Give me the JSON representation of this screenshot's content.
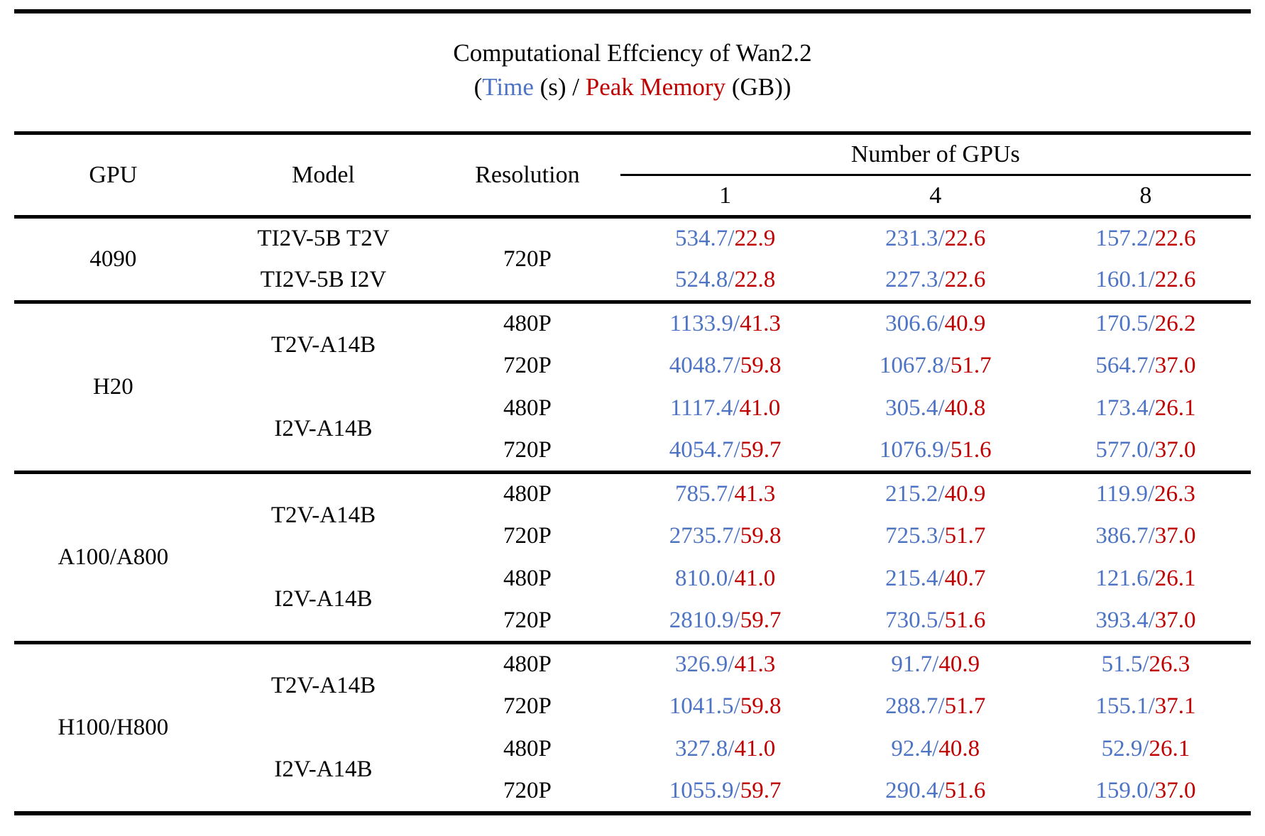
{
  "colors": {
    "time": "#4d74c4",
    "memory": "#c00000",
    "text": "#000000",
    "background": "#ffffff"
  },
  "title": {
    "line1": "Computational Effciency of Wan2.2",
    "line2": {
      "prefix": "(",
      "time_label": "Time",
      "mid": " (s) / ",
      "memory_label": "Peak Memory",
      "suffix": " (GB))"
    }
  },
  "header": {
    "gpu": "GPU",
    "model": "Model",
    "resolution": "Resolution",
    "gpus_group": "Number of GPUs",
    "gpu_counts": [
      "1",
      "4",
      "8"
    ]
  },
  "chart_data": {
    "type": "table",
    "value_format": "Time (s) / Peak Memory (GB)",
    "separator": "/",
    "gpu_count_columns": [
      "1",
      "4",
      "8"
    ],
    "sections": [
      {
        "gpu": "4090",
        "rows": [
          {
            "model": "TI2V-5B T2V",
            "model_rowspan": 1,
            "resolution": "720P",
            "resolution_rowspan": 2,
            "values": [
              [
                "534.7",
                "22.9"
              ],
              [
                "231.3",
                "22.6"
              ],
              [
                "157.2",
                "22.6"
              ]
            ]
          },
          {
            "model": "TI2V-5B I2V",
            "model_rowspan": 1,
            "values": [
              [
                "524.8",
                "22.8"
              ],
              [
                "227.3",
                "22.6"
              ],
              [
                "160.1",
                "22.6"
              ]
            ]
          }
        ]
      },
      {
        "gpu": "H20",
        "rows": [
          {
            "model": "T2V-A14B",
            "model_rowspan": 2,
            "resolution": "480P",
            "resolution_rowspan": 1,
            "values": [
              [
                "1133.9",
                "41.3"
              ],
              [
                "306.6",
                "40.9"
              ],
              [
                "170.5",
                "26.2"
              ]
            ]
          },
          {
            "resolution": "720P",
            "resolution_rowspan": 1,
            "values": [
              [
                "4048.7",
                "59.8"
              ],
              [
                "1067.8",
                "51.7"
              ],
              [
                "564.7",
                "37.0"
              ]
            ]
          },
          {
            "model": "I2V-A14B",
            "model_rowspan": 2,
            "resolution": "480P",
            "resolution_rowspan": 1,
            "values": [
              [
                "1117.4",
                "41.0"
              ],
              [
                "305.4",
                "40.8"
              ],
              [
                "173.4",
                "26.1"
              ]
            ]
          },
          {
            "resolution": "720P",
            "resolution_rowspan": 1,
            "values": [
              [
                "4054.7",
                "59.7"
              ],
              [
                "1076.9",
                "51.6"
              ],
              [
                "577.0",
                "37.0"
              ]
            ]
          }
        ]
      },
      {
        "gpu": "A100/A800",
        "rows": [
          {
            "model": "T2V-A14B",
            "model_rowspan": 2,
            "resolution": "480P",
            "resolution_rowspan": 1,
            "values": [
              [
                "785.7",
                "41.3"
              ],
              [
                "215.2",
                "40.9"
              ],
              [
                "119.9",
                "26.3"
              ]
            ]
          },
          {
            "resolution": "720P",
            "resolution_rowspan": 1,
            "values": [
              [
                "2735.7",
                "59.8"
              ],
              [
                "725.3",
                "51.7"
              ],
              [
                "386.7",
                "37.0"
              ]
            ]
          },
          {
            "model": "I2V-A14B",
            "model_rowspan": 2,
            "resolution": "480P",
            "resolution_rowspan": 1,
            "values": [
              [
                "810.0",
                "41.0"
              ],
              [
                "215.4",
                "40.7"
              ],
              [
                "121.6",
                "26.1"
              ]
            ]
          },
          {
            "resolution": "720P",
            "resolution_rowspan": 1,
            "values": [
              [
                "2810.9",
                "59.7"
              ],
              [
                "730.5",
                "51.6"
              ],
              [
                "393.4",
                "37.0"
              ]
            ]
          }
        ]
      },
      {
        "gpu": "H100/H800",
        "rows": [
          {
            "model": "T2V-A14B",
            "model_rowspan": 2,
            "resolution": "480P",
            "resolution_rowspan": 1,
            "values": [
              [
                "326.9",
                "41.3"
              ],
              [
                "91.7",
                "40.9"
              ],
              [
                "51.5",
                "26.3"
              ]
            ]
          },
          {
            "resolution": "720P",
            "resolution_rowspan": 1,
            "values": [
              [
                "1041.5",
                "59.8"
              ],
              [
                "288.7",
                "51.7"
              ],
              [
                "155.1",
                "37.1"
              ]
            ]
          },
          {
            "model": "I2V-A14B",
            "model_rowspan": 2,
            "resolution": "480P",
            "resolution_rowspan": 1,
            "values": [
              [
                "327.8",
                "41.0"
              ],
              [
                "92.4",
                "40.8"
              ],
              [
                "52.9",
                "26.1"
              ]
            ]
          },
          {
            "resolution": "720P",
            "resolution_rowspan": 1,
            "values": [
              [
                "1055.9",
                "59.7"
              ],
              [
                "290.4",
                "51.6"
              ],
              [
                "159.0",
                "37.0"
              ]
            ]
          }
        ]
      }
    ]
  }
}
